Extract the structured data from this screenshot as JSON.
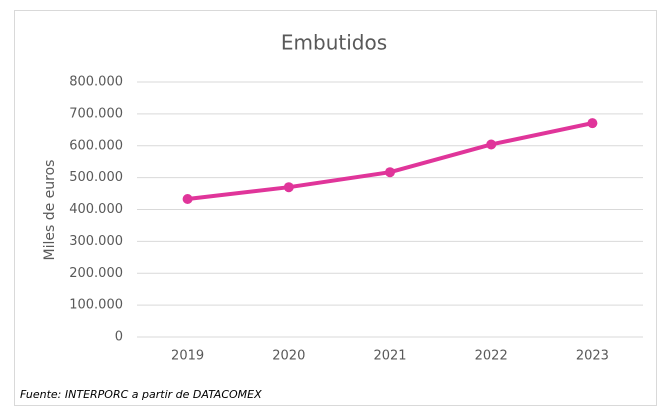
{
  "chart_data": {
    "type": "line",
    "title": "Embutidos",
    "y_label": "Miles de euros",
    "source": "Fuente: INTERPORC  a partir de DATACOMEX",
    "categories": [
      "2019",
      "2020",
      "2021",
      "2022",
      "2023"
    ],
    "series": [
      {
        "name": "Embutidos",
        "color": "#e0359a",
        "values": [
          433000,
          470000,
          517000,
          604000,
          671000
        ]
      }
    ],
    "ylim": [
      0,
      800000
    ],
    "yticks": [
      0,
      {
        "value": 100000,
        "label": "100.000"
      },
      {
        "value": 200000,
        "label": "200.000"
      },
      {
        "value": 300000,
        "label": "300.000"
      },
      {
        "value": 400000,
        "label": "400.000"
      },
      {
        "value": 500000,
        "label": "500.000"
      },
      {
        "value": 600000,
        "label": "600.000"
      },
      {
        "value": 700000,
        "label": "700.000"
      },
      {
        "value": 800000,
        "label": "800.000"
      }
    ],
    "grid": true
  }
}
